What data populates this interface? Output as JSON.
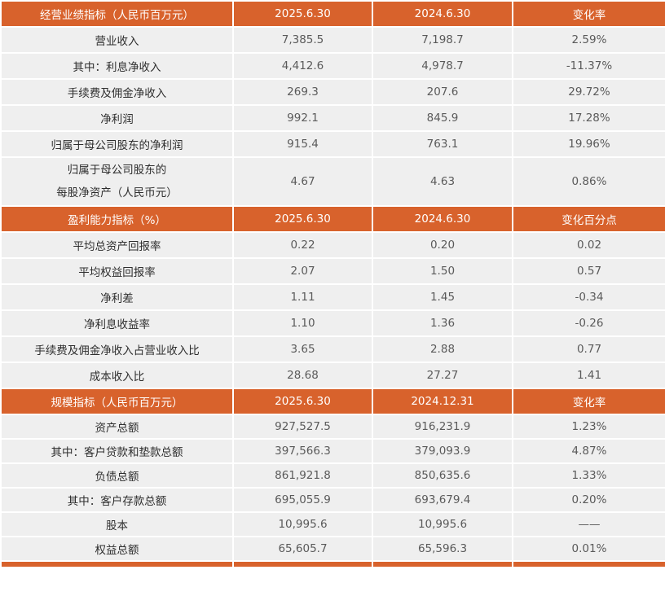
{
  "sections": [
    {
      "header": [
        "经营业绩指标（人民币百万元）",
        "2025.6.30",
        "2024.6.30",
        "变化率"
      ],
      "rows": [
        [
          "营业收入",
          "7,385.5",
          "7,198.7",
          "2.59%"
        ],
        [
          "其中：利息净收入",
          "4,412.6",
          "4,978.7",
          "-11.37%"
        ],
        [
          "手续费及佣金净收入",
          "269.3",
          "207.6",
          "29.72%"
        ],
        [
          "净利润",
          "992.1",
          "845.9",
          "17.28%"
        ],
        [
          "归属于母公司股东的净利润",
          "915.4",
          "763.1",
          "19.96%"
        ]
      ],
      "tall_row": {
        "label_line1": "归属于母公司股东的",
        "label_line2": "每股净资产（人民币元）",
        "v1": "4.67",
        "v2": "4.63",
        "v3": "0.86%"
      }
    },
    {
      "header": [
        "盈利能力指标（%）",
        "2025.6.30",
        "2024.6.30",
        "变化百分点"
      ],
      "rows": [
        [
          "平均总资产回报率",
          "0.22",
          "0.20",
          "0.02"
        ],
        [
          "平均权益回报率",
          "2.07",
          "1.50",
          "0.57"
        ],
        [
          "净利差",
          "1.11",
          "1.45",
          "-0.34"
        ],
        [
          "净利息收益率",
          "1.10",
          "1.36",
          "-0.26"
        ],
        [
          "手续费及佣金净收入占营业收入比",
          "3.65",
          "2.88",
          "0.77"
        ],
        [
          "成本收入比",
          "28.68",
          "27.27",
          "1.41"
        ]
      ]
    },
    {
      "header": [
        "规模指标（人民币百万元）",
        "2025.6.30",
        "2024.12.31",
        "变化率"
      ],
      "rows": [
        [
          "资产总额",
          "927,527.5",
          "916,231.9",
          "1.23%"
        ],
        [
          "其中：客户贷款和垫款总额",
          "397,566.3",
          "379,093.9",
          "4.87%"
        ],
        [
          "负债总额",
          "861,921.8",
          "850,635.6",
          "1.33%"
        ],
        [
          "其中：客户存款总额",
          "695,055.9",
          "693,679.4",
          "0.20%"
        ],
        [
          "股本",
          "10,995.6",
          "10,995.6",
          "——"
        ],
        [
          "权益总额",
          "65,605.7",
          "65,596.3",
          "0.01%"
        ]
      ]
    }
  ]
}
